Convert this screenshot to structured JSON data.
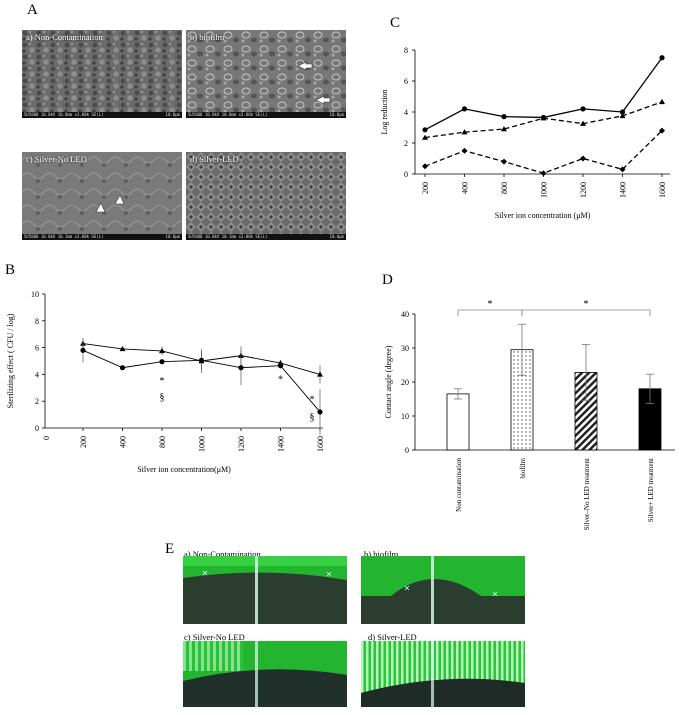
{
  "panels": {
    "A": "A",
    "B": "B",
    "C": "C",
    "D": "D",
    "E": "E"
  },
  "sem": {
    "a": "a) Non-Contamination",
    "b": "b) biofilm",
    "c": "c) Silver-No LED",
    "d": "d) Silver-LED",
    "scale_a": "SU5000 10.0kV 10.0mm x3.00k SE(L)",
    "scale_b": "SU5000 10.0kV 10.0mm x3.00k SE(L)",
    "scale_c": "SU5000 10.0kV 10.1mm x3.00k SE(L)",
    "scale_d": "SU5000 10.0kV 10.1mm x3.00k SE(L)",
    "scale_len": "10.0μm"
  },
  "photos": {
    "a": "a) Non-Contamination",
    "b": "b) biofilm",
    "c": "c) Silver-No LED",
    "d": "d) Silver-LED"
  },
  "colors": {
    "photo_green": "#1fbf2e",
    "sem_gray": "#6f6f6f"
  },
  "chart_data": [
    {
      "id": "B",
      "type": "line",
      "categories": [
        "200",
        "400",
        "800",
        "1000",
        "1200",
        "1400",
        "1600"
      ],
      "x_extra_tick": "0",
      "series": [
        {
          "marker": "triangle",
          "values": [
            6.3,
            5.9,
            5.75,
            5.0,
            5.4,
            4.85,
            4.0
          ],
          "errors": [
            0.4,
            0.1,
            0.3,
            0.9,
            0.7,
            0.2,
            0.7
          ]
        },
        {
          "marker": "circle",
          "values": [
            5.8,
            4.5,
            4.95,
            5.05,
            4.5,
            4.65,
            1.2
          ],
          "errors": [
            0.9,
            0.1,
            0.1,
            0.7,
            1.3,
            0.2,
            1.7
          ]
        }
      ],
      "ylabel": "Sterilizing effect ( CFU / log)",
      "xlabel": "Silver ion concentration(μM)",
      "ylim": [
        0,
        10
      ],
      "yticks": [
        "0",
        "2",
        "4",
        "6",
        "8",
        "10"
      ],
      "annotations": [
        {
          "x": "800",
          "text": "*"
        },
        {
          "x": "800",
          "text": "§"
        },
        {
          "x": "1400",
          "text": "*"
        },
        {
          "x": "1600",
          "text": "*"
        },
        {
          "x": "1600",
          "text": "§"
        }
      ]
    },
    {
      "id": "C",
      "type": "line",
      "categories": [
        "200",
        "400",
        "800",
        "1000",
        "1200",
        "1400",
        "1600"
      ],
      "series": [
        {
          "marker": "circle",
          "style": "solid",
          "values": [
            2.85,
            4.2,
            3.7,
            3.65,
            4.2,
            4.0,
            7.5
          ]
        },
        {
          "marker": "triangle",
          "style": "dashed",
          "values": [
            2.35,
            2.7,
            2.9,
            3.6,
            3.25,
            3.75,
            4.65
          ]
        },
        {
          "marker": "diamond",
          "style": "dashed",
          "values": [
            0.5,
            1.5,
            0.8,
            0.05,
            1.0,
            0.3,
            2.8
          ]
        }
      ],
      "ylabel": "Log reduction",
      "xlabel": "Silver ion concentration (μM)",
      "ylim": [
        0,
        8
      ],
      "yticks": [
        "0",
        "2",
        "4",
        "6",
        "8"
      ]
    },
    {
      "id": "D",
      "type": "bar",
      "categories": [
        "Non contamination",
        "biofilm",
        "Silver–No LED treatment",
        "Silver+ LED treatment"
      ],
      "values": [
        16.5,
        29.5,
        22.8,
        18.0
      ],
      "errors": [
        1.5,
        7.5,
        8.2,
        4.3
      ],
      "patterns": [
        "white",
        "dots",
        "hatch",
        "black"
      ],
      "ylabel": "Contact angle (degree)",
      "ylim": [
        0,
        40
      ],
      "yticks": [
        "0",
        "10",
        "20",
        "30",
        "40"
      ],
      "significance": [
        {
          "from": "Non contamination",
          "to": "biofilm",
          "text": "*"
        },
        {
          "from": "biofilm",
          "to": "Silver+ LED treatment",
          "text": "*"
        }
      ]
    }
  ]
}
